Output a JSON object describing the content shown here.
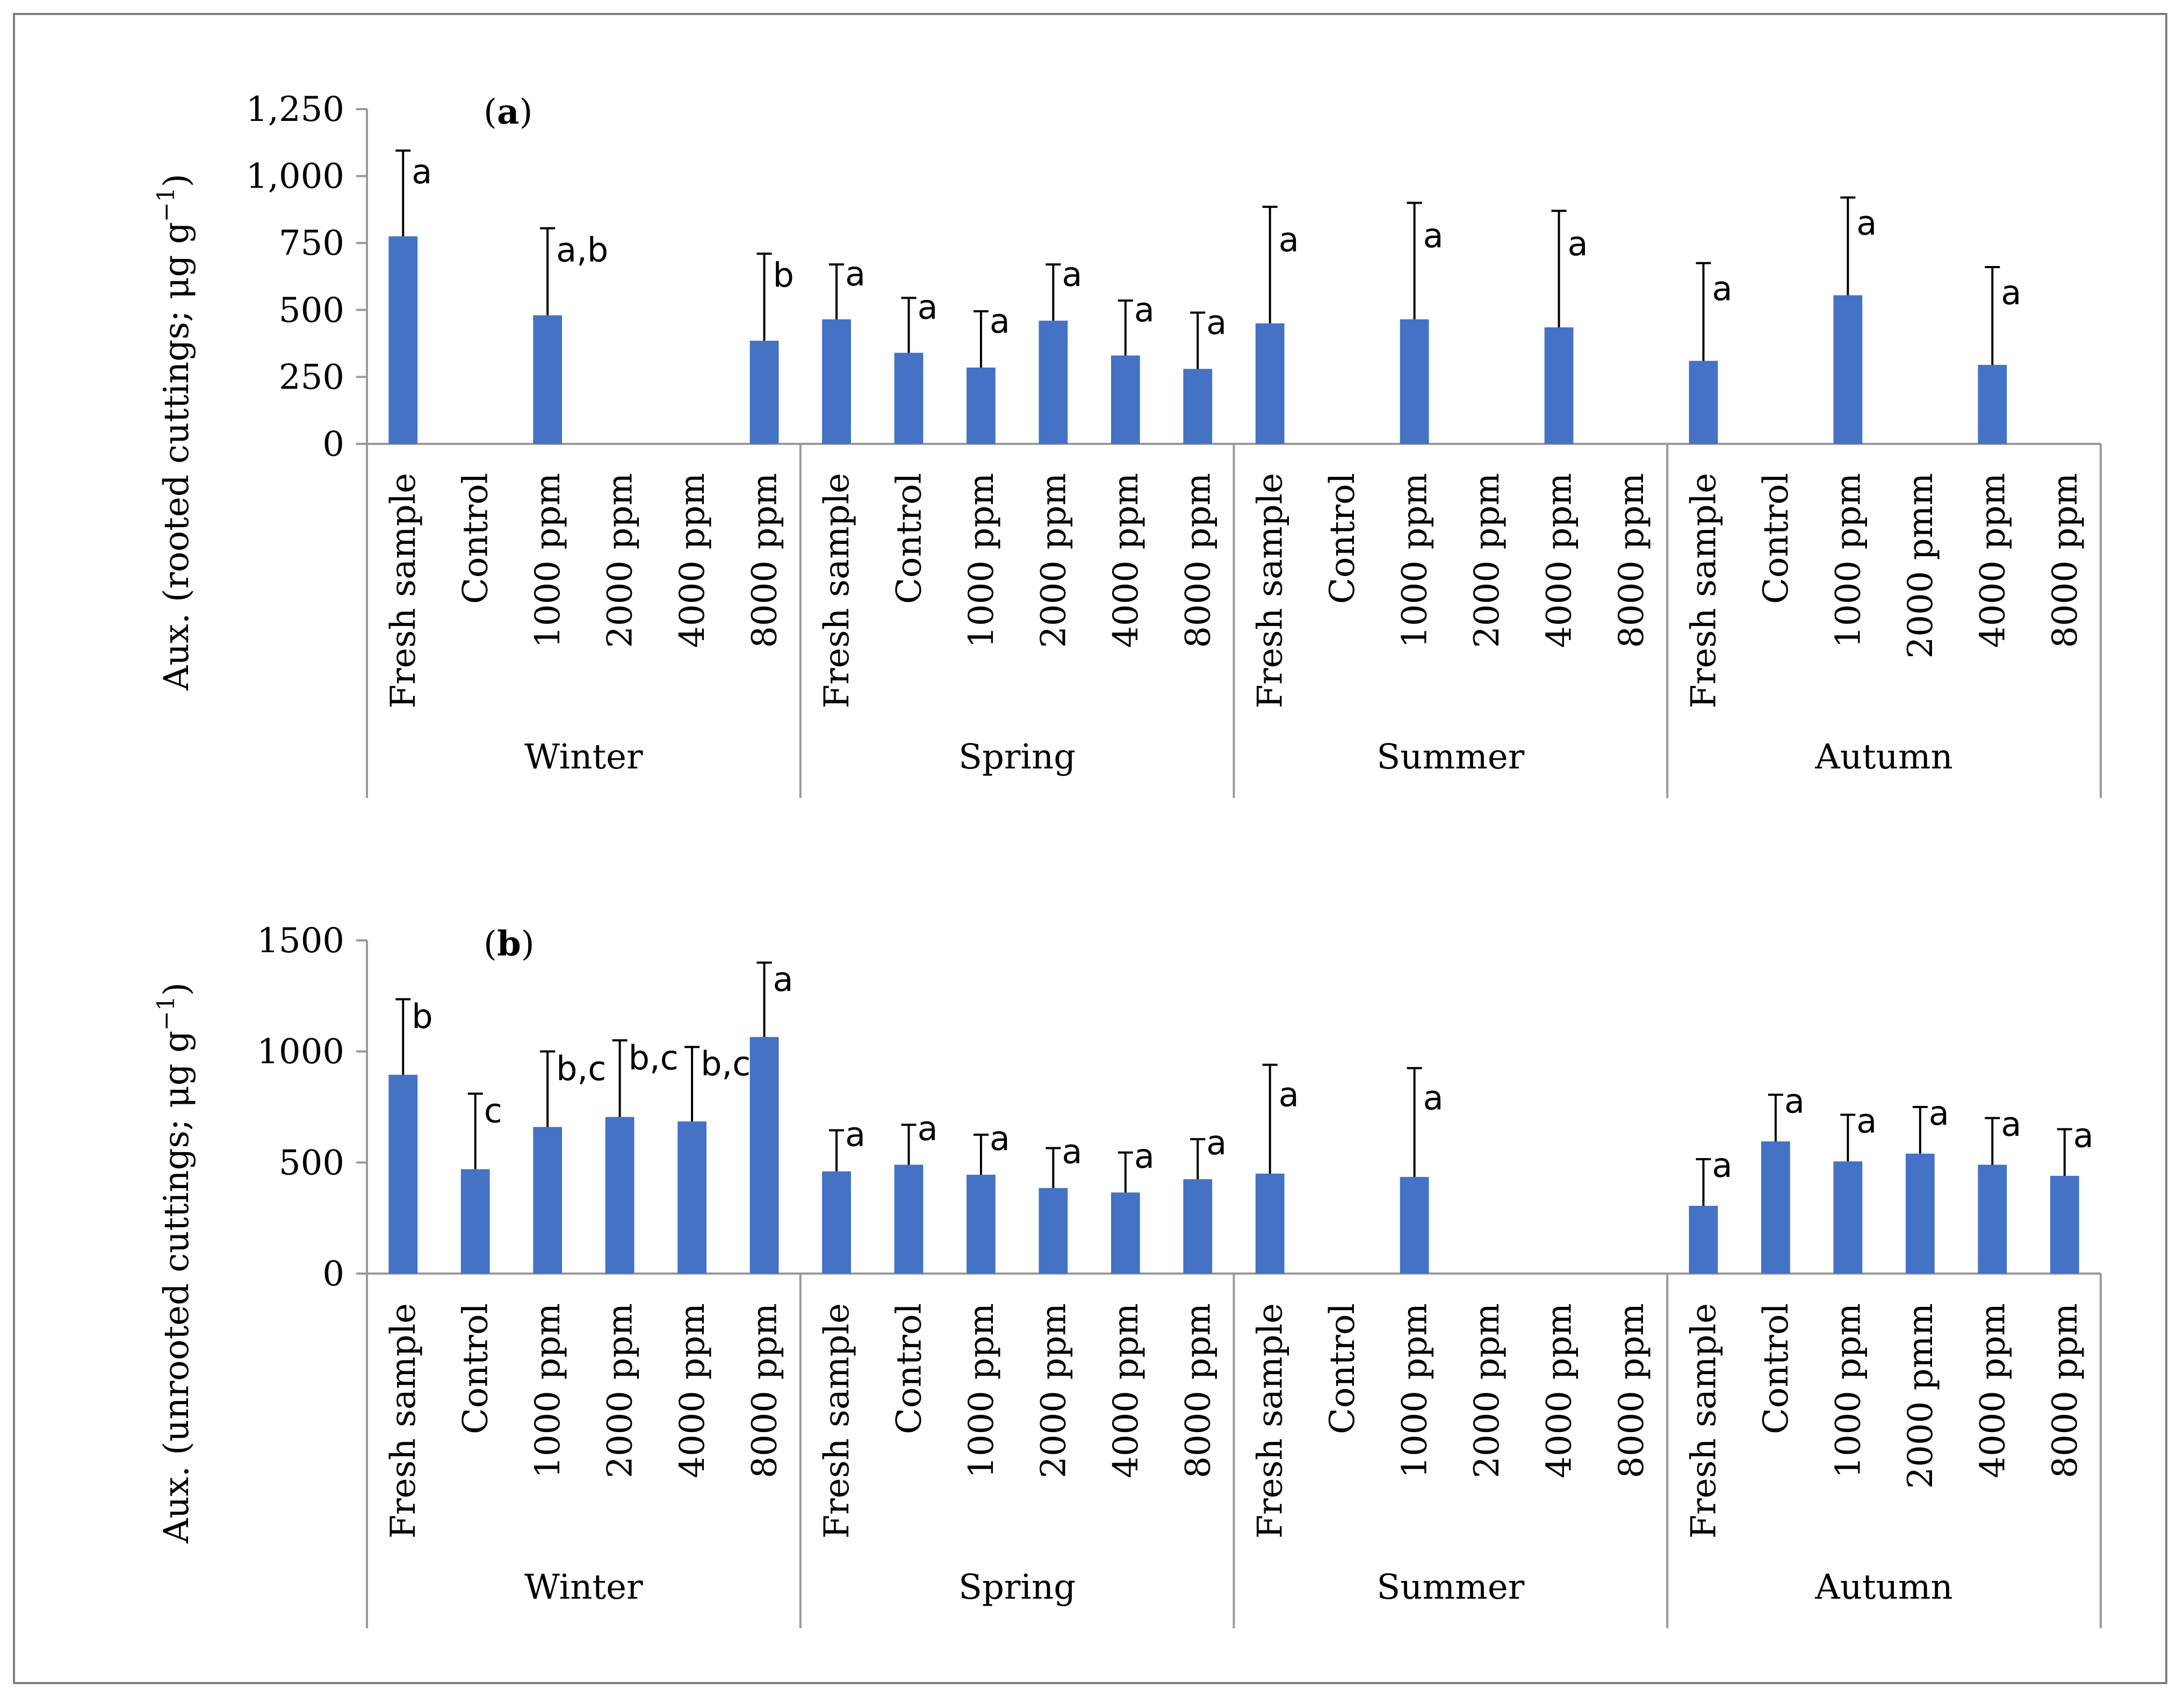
{
  "colors": {
    "bar": "#4472C4",
    "axis": "#999999",
    "text": "#000000",
    "frame": "#7f7f7f"
  },
  "chart_data": [
    {
      "type": "bar",
      "panel_label": "a",
      "ylabel_main": "Aux. (rooted cuttings; μg g",
      "ylabel_sup": "−1",
      "ylabel_end": ")",
      "ylim": [
        0,
        1250
      ],
      "yticks": [
        0,
        250,
        500,
        750,
        1000,
        1250
      ],
      "ytick_labels": [
        "0",
        "250",
        "500",
        "750",
        "1,000",
        "1,250"
      ],
      "groups": [
        "Winter",
        "Spring",
        "Summer",
        "Autumn"
      ],
      "categories": [
        [
          "Fresh sample",
          "Control",
          "1000 ppm",
          "2000 ppm",
          "4000 ppm",
          "8000 ppm"
        ],
        [
          "Fresh sample",
          "Control",
          "1000 ppm",
          "2000 ppm",
          "4000 ppm",
          "8000 ppm"
        ],
        [
          "Fresh sample",
          "Control",
          "1000 ppm",
          "2000 ppm",
          "4000 ppm",
          "8000 ppm"
        ],
        [
          "Fresh sample",
          "Control",
          "1000 ppm",
          "2000 pmm",
          "4000 ppm",
          "8000 ppm"
        ]
      ],
      "values": [
        [
          775,
          null,
          480,
          null,
          null,
          385
        ],
        [
          465,
          340,
          285,
          460,
          330,
          280
        ],
        [
          450,
          null,
          465,
          null,
          435,
          null
        ],
        [
          310,
          null,
          555,
          null,
          295,
          null
        ]
      ],
      "errors": [
        [
          320,
          null,
          325,
          null,
          null,
          325
        ],
        [
          205,
          205,
          210,
          210,
          205,
          210
        ],
        [
          435,
          null,
          435,
          null,
          435,
          null
        ],
        [
          365,
          null,
          365,
          null,
          365,
          null
        ]
      ],
      "letters": [
        [
          "a",
          null,
          "a,b",
          null,
          null,
          "b"
        ],
        [
          "a",
          "a",
          "a",
          "a",
          "a",
          "a"
        ],
        [
          "a",
          null,
          "a",
          null,
          "a",
          null
        ],
        [
          "a",
          null,
          "a",
          null,
          "a",
          null
        ]
      ]
    },
    {
      "type": "bar",
      "panel_label": "b",
      "ylabel_main": "Aux. (unrooted cuttings; μg g",
      "ylabel_sup": "−1",
      "ylabel_end": ")",
      "ylim": [
        0,
        1500
      ],
      "yticks": [
        0,
        500,
        1000,
        1500
      ],
      "ytick_labels": [
        "0",
        "500",
        "1000",
        "1500"
      ],
      "groups": [
        "Winter",
        "Spring",
        "Summer",
        "Autumn"
      ],
      "categories": [
        [
          "Fresh sample",
          "Control",
          "1000 ppm",
          "2000 ppm",
          "4000 ppm",
          "8000 ppm"
        ],
        [
          "Fresh sample",
          "Control",
          "1000 ppm",
          "2000 ppm",
          "4000 ppm",
          "8000 ppm"
        ],
        [
          "Fresh sample",
          "Control",
          "1000 ppm",
          "2000 ppm",
          "4000 ppm",
          "8000 ppm"
        ],
        [
          "Fresh sample",
          "Control",
          "1000 ppm",
          "2000 pmm",
          "4000 ppm",
          "8000 ppm"
        ]
      ],
      "values": [
        [
          895,
          470,
          660,
          705,
          685,
          1065
        ],
        [
          460,
          490,
          445,
          385,
          365,
          425
        ],
        [
          450,
          null,
          435,
          null,
          null,
          null
        ],
        [
          305,
          595,
          505,
          540,
          490,
          440
        ]
      ],
      "errors": [
        [
          340,
          340,
          340,
          345,
          335,
          335
        ],
        [
          185,
          180,
          180,
          180,
          180,
          180
        ],
        [
          490,
          null,
          490,
          null,
          null,
          null
        ],
        [
          210,
          210,
          210,
          210,
          210,
          210
        ]
      ],
      "letters": [
        [
          "b",
          "c",
          "b,c",
          "b,c",
          "b,c",
          "a"
        ],
        [
          "a",
          "a",
          "a",
          "a",
          "a",
          "a"
        ],
        [
          "a",
          null,
          "a",
          null,
          null,
          null
        ],
        [
          "a",
          "a",
          "a",
          "a",
          "a",
          "a"
        ]
      ]
    }
  ]
}
